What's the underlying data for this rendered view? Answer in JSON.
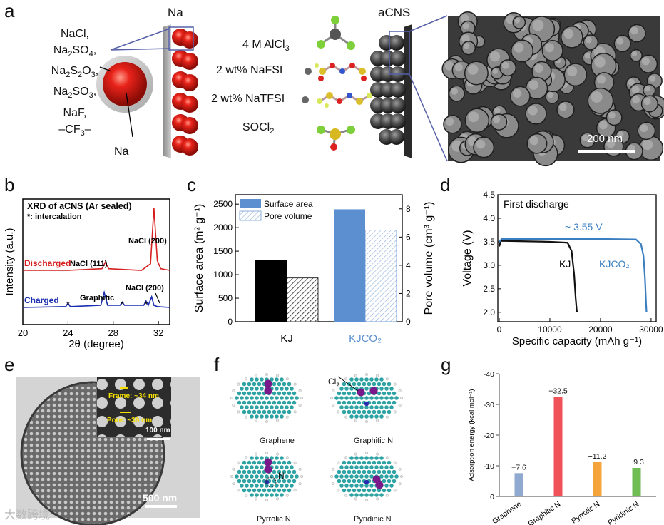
{
  "panels": {
    "a": "a",
    "b": "b",
    "c": "c",
    "d": "d",
    "e": "e",
    "f": "f",
    "g": "g"
  },
  "panel_a": {
    "salts": [
      "NaCl,",
      "Na2SO4,",
      "Na2S2O3,",
      "Na2SO3,",
      "NaF,",
      "–CF3–"
    ],
    "na_label": "Na",
    "na_top": "Na",
    "acns_top": "aCNS",
    "reagents": [
      "4 M AlCl3",
      "2 wt% NaFSI",
      "2 wt% NaTFSI",
      "SOCl2"
    ],
    "scale_bar": "200 nm"
  },
  "chart_data": [
    {
      "panel": "b",
      "type": "line",
      "title": "XRD of aCNS (Ar sealed)",
      "subtitle": "*: intercalation",
      "xlabel": "2θ (degree)",
      "ylabel": "Intensity (a.u.)",
      "xlim": [
        20,
        33
      ],
      "xticks": [
        "20",
        "24",
        "28",
        "32"
      ],
      "series": [
        {
          "name": "Discharged",
          "color": "#d62020",
          "x": [
            20,
            24,
            27.0,
            27.3,
            27.6,
            30.5,
            31.3,
            31.6,
            31.9,
            32.2,
            33
          ],
          "y": [
            1.0,
            1.0,
            1.05,
            1.25,
            1.05,
            1.0,
            1.2,
            2.9,
            1.3,
            1.05,
            1.0
          ]
        },
        {
          "name": "Charged",
          "color": "#1a2db0",
          "x": [
            20,
            23.8,
            24.0,
            24.2,
            26.9,
            27.2,
            27.5,
            28.6,
            28.8,
            29.0,
            30.7,
            30.9,
            31.1,
            31.4,
            31.6,
            31.9,
            33
          ],
          "y": [
            0,
            0.02,
            0.1,
            0.02,
            0.05,
            0.35,
            0.05,
            0.05,
            0.12,
            0.05,
            0.05,
            0.15,
            0.05,
            0.25,
            0.05,
            0.02,
            0
          ]
        }
      ],
      "annotations": [
        "NaCl (200)",
        "NaCl (111)",
        "Graphitic",
        "NaCl (200)"
      ]
    },
    {
      "panel": "c",
      "type": "bar",
      "categories": [
        "KJ",
        "KJCO2"
      ],
      "ylabel": "Surface area (m2 g-1)",
      "y2label": "Pore volume (cm3 g-1)",
      "ylim": [
        0,
        2700
      ],
      "y2lim": [
        0,
        9
      ],
      "yticks": [
        "0",
        "500",
        "1000",
        "1500",
        "2000",
        "2500"
      ],
      "y2ticks": [
        "0",
        "2",
        "4",
        "6",
        "8"
      ],
      "series": [
        {
          "name": "Surface area",
          "axis": "left",
          "values": [
            1310,
            2390
          ]
        },
        {
          "name": "Pore volume",
          "axis": "right",
          "values": [
            3.1,
            6.5
          ]
        }
      ],
      "colors": {
        "KJ": "#000000",
        "KJCO2": "#5b8fd0"
      }
    },
    {
      "panel": "d",
      "type": "line",
      "title": "First discharge",
      "xlabel": "Specific capacity (mAh g-1)",
      "ylabel": "Voltage (V)",
      "xlim": [
        0,
        31000
      ],
      "ylim": [
        1.8,
        4.5
      ],
      "xticks": [
        "0",
        "10000",
        "20000",
        "30000"
      ],
      "yticks": [
        "2.0",
        "2.5",
        "3.0",
        "3.5",
        "4.0",
        "4.5"
      ],
      "annotation": "~ 3.55 V",
      "series": [
        {
          "name": "KJ",
          "color": "#111111",
          "x": [
            0,
            300,
            5000,
            10000,
            13500,
            14300,
            14800,
            15100,
            15300,
            15400
          ],
          "y": [
            3.4,
            3.52,
            3.51,
            3.5,
            3.48,
            3.3,
            2.8,
            2.3,
            2.05,
            2.0
          ]
        },
        {
          "name": "KJCO2",
          "color": "#3a7ec0",
          "x": [
            0,
            500,
            10000,
            20000,
            27000,
            28000,
            28500,
            28800,
            29000,
            29100
          ],
          "y": [
            3.5,
            3.56,
            3.56,
            3.56,
            3.55,
            3.45,
            3.2,
            2.7,
            2.2,
            2.0
          ]
        }
      ]
    },
    {
      "panel": "g",
      "type": "bar",
      "categories": [
        "Graphene",
        "Graphitic N",
        "Pyrrolic N",
        "Pyridinic N"
      ],
      "values": [
        -7.6,
        -32.5,
        -11.2,
        -9.3
      ],
      "value_labels": [
        "−7.6",
        "−32.5",
        "−11.2",
        "−9.3"
      ],
      "colors": [
        "#8fa9d0",
        "#f0525a",
        "#f5a33b",
        "#6fbd54"
      ],
      "ylabel": "Adsorption energy (kcal mol-1)",
      "ylim": [
        0,
        -40
      ],
      "yticks": [
        "-40",
        "-30",
        "-20",
        "-10",
        "0"
      ]
    }
  ],
  "panel_e": {
    "frame": "Frame: ~34 nm",
    "pore": "Pore: ~39 nm",
    "inset_scale": "100 nm",
    "scale": "500 nm"
  },
  "panel_f": {
    "labels": [
      "Graphene",
      "Graphitic N",
      "Pyrrolic N",
      "Pyridinic N"
    ],
    "cl2": "Cl2",
    "n": "N"
  },
  "watermark": "大数跨境"
}
